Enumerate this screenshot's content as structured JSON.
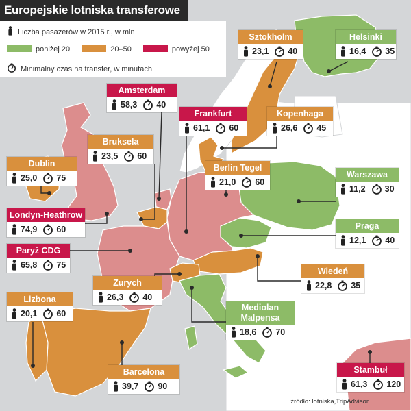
{
  "title": "Europejskie lotniska transferowe",
  "legend": {
    "passengers_label": "Liczba pasażerów w 2015 r., w mln",
    "transfer_label": "Minimalny czas na transfer, w minutach",
    "categories": [
      {
        "label": "poniżej 20",
        "color": "#8dbb67"
      },
      {
        "label": "20–50",
        "color": "#d9903d"
      },
      {
        "label": "powyżej 50",
        "color": "#c8174a"
      }
    ],
    "icons": {
      "passengers": "person-icon",
      "time": "stopwatch-icon"
    }
  },
  "airports": [
    {
      "id": "sztokholm",
      "name": "Sztokholm",
      "passengers": "23,1",
      "minutes": "40",
      "category": "20–50"
    },
    {
      "id": "helsinki",
      "name": "Helsinki",
      "passengers": "16,4",
      "minutes": "35",
      "category": "poniżej 20"
    },
    {
      "id": "amsterdam",
      "name": "Amsterdam",
      "passengers": "58,3",
      "minutes": "40",
      "category": "powyżej 50"
    },
    {
      "id": "frankfurt",
      "name": "Frankfurt",
      "passengers": "61,1",
      "minutes": "60",
      "category": "powyżej 50"
    },
    {
      "id": "kopenhaga",
      "name": "Kopenhaga",
      "passengers": "26,6",
      "minutes": "45",
      "category": "20–50"
    },
    {
      "id": "bruksela",
      "name": "Bruksela",
      "passengers": "23,5",
      "minutes": "60",
      "category": "20–50"
    },
    {
      "id": "dublin",
      "name": "Dublin",
      "passengers": "25,0",
      "minutes": "75",
      "category": "20–50"
    },
    {
      "id": "berlin",
      "name": "Berlin Tegel",
      "passengers": "21,0",
      "minutes": "60",
      "category": "20–50"
    },
    {
      "id": "warszawa",
      "name": "Warszawa",
      "passengers": "11,2",
      "minutes": "30",
      "category": "poniżej 20"
    },
    {
      "id": "londyn",
      "name": "Londyn-Heathrow",
      "passengers": "74,9",
      "minutes": "60",
      "category": "powyżej 50"
    },
    {
      "id": "praga",
      "name": "Praga",
      "passengers": "12,1",
      "minutes": "40",
      "category": "poniżej 20"
    },
    {
      "id": "paryz",
      "name": "Paryż CDG",
      "passengers": "65,8",
      "minutes": "75",
      "category": "powyżej 50"
    },
    {
      "id": "wieden",
      "name": "Wiedeń",
      "passengers": "22,8",
      "minutes": "35",
      "category": "20–50"
    },
    {
      "id": "zurych",
      "name": "Zurych",
      "passengers": "26,3",
      "minutes": "40",
      "category": "20–50"
    },
    {
      "id": "lizbona",
      "name": "Lizbona",
      "passengers": "20,1",
      "minutes": "60",
      "category": "20–50"
    },
    {
      "id": "mediolan",
      "name": "Mediolan Malpensa",
      "passengers": "18,6",
      "minutes": "70",
      "category": "poniżej 20"
    },
    {
      "id": "barcelona",
      "name": "Barcelona",
      "passengers": "39,7",
      "minutes": "90",
      "category": "20–50"
    },
    {
      "id": "stambul",
      "name": "Stambuł",
      "passengers": "61,3",
      "minutes": "120",
      "category": "powyżej 50"
    }
  ],
  "colors": {
    "sea": "#d4d6d8",
    "land_other": "#ffffff",
    "green": "#8dbb67",
    "orange": "#d9903d",
    "pink": "#dc8d8d",
    "red": "#c8174a",
    "title_bg": "#2a2a2a"
  },
  "source": "źródło: lotniska,TripAdvisor"
}
